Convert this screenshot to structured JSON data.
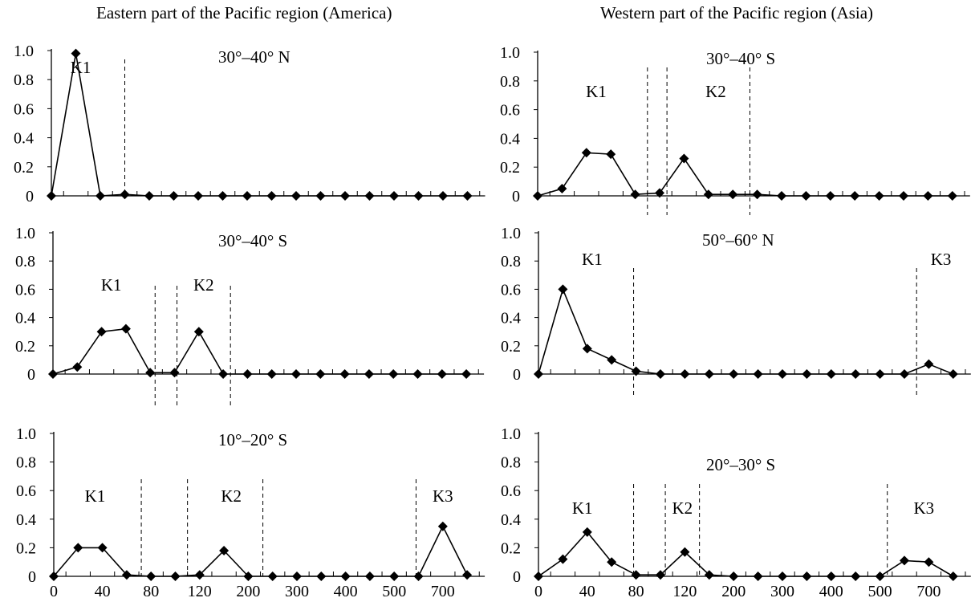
{
  "column_titles": {
    "left": "Eastern part of the Pacific region (America)",
    "right": "Western part of the Pacific region (Asia)"
  },
  "chart_data": [
    {
      "type": "line",
      "title": "30°–40° N",
      "ylim": [
        0,
        1.0
      ],
      "yticks": [
        "0",
        "0.2",
        "0.4",
        "0.6",
        "0.8",
        "1.0"
      ],
      "xtick_labels": [],
      "values": [
        0,
        0.98,
        0,
        0.01,
        0,
        0,
        0,
        0,
        0,
        0,
        0,
        0,
        0,
        0,
        0,
        0,
        0,
        0
      ],
      "clusters": [
        {
          "label": "K1",
          "index": 1.2
        }
      ],
      "dividers": [
        3.0
      ]
    },
    {
      "type": "line",
      "title": "30°–40° S",
      "ylim": [
        0,
        1.0
      ],
      "yticks": [
        "0",
        "0.2",
        "0.4",
        "0.6",
        "0.8",
        "1.0"
      ],
      "xtick_labels": [],
      "values": [
        0,
        0.05,
        0.3,
        0.32,
        0.01,
        0.01,
        0.3,
        0,
        0,
        0,
        0,
        0,
        0,
        0,
        0,
        0,
        0,
        0
      ],
      "clusters": [
        {
          "label": "K1",
          "index": 2.4
        },
        {
          "label": "K2",
          "index": 6.2
        }
      ],
      "dividers": [
        4.2,
        5.1,
        7.3
      ]
    },
    {
      "type": "line",
      "title": "10°–20° S",
      "ylim": [
        0,
        1.0
      ],
      "yticks": [
        "0",
        "0.2",
        "0.4",
        "0.6",
        "0.8",
        "1.0"
      ],
      "xtick_labels": [
        "0",
        "40",
        "80",
        "120",
        "200",
        "300",
        "400",
        "500",
        "700"
      ],
      "values": [
        0,
        0.2,
        0.2,
        0.01,
        0,
        0,
        0.01,
        0.18,
        0,
        0,
        0,
        0,
        0,
        0,
        0,
        0,
        0.35,
        0.01
      ],
      "clusters": [
        {
          "label": "K1",
          "index": 1.7
        },
        {
          "label": "K2",
          "index": 7.3
        },
        {
          "label": "K3",
          "index": 16.0
        }
      ],
      "dividers": [
        3.6,
        5.5,
        8.6,
        14.9
      ]
    },
    {
      "type": "line",
      "title": "30°–40° S",
      "ylim": [
        0,
        1.0
      ],
      "yticks": [
        "0",
        "0.2",
        "0.4",
        "0.6",
        "0.8",
        "1.0"
      ],
      "xtick_labels": [],
      "values": [
        0,
        0.05,
        0.3,
        0.29,
        0.01,
        0.02,
        0.26,
        0.01,
        0.01,
        0.01,
        0,
        0,
        0,
        0,
        0,
        0,
        0,
        0
      ],
      "clusters": [
        {
          "label": "K1",
          "index": 2.4
        },
        {
          "label": "K2",
          "index": 7.3
        }
      ],
      "dividers": [
        4.5,
        5.3,
        8.7
      ]
    },
    {
      "type": "line",
      "title": "50°–60° N",
      "ylim": [
        0,
        1.0
      ],
      "yticks": [
        "0",
        "0.2",
        "0.4",
        "0.6",
        "0.8",
        "1.0"
      ],
      "xtick_labels": [],
      "values": [
        0,
        0.6,
        0.18,
        0.1,
        0.02,
        0,
        0,
        0,
        0,
        0,
        0,
        0,
        0,
        0,
        0,
        0,
        0.07,
        0
      ],
      "clusters": [
        {
          "label": "K1",
          "index": 2.2
        },
        {
          "label": "K3",
          "index": 16.5
        }
      ],
      "dividers": [
        3.9,
        15.5
      ]
    },
    {
      "type": "line",
      "title": "20°–30° S",
      "ylim": [
        0,
        1.0
      ],
      "yticks": [
        "0",
        "0.2",
        "0.4",
        "0.6",
        "0.8",
        "1.0"
      ],
      "xtick_labels": [
        "0",
        "40",
        "80",
        "120",
        "200",
        "300",
        "400",
        "500",
        "700"
      ],
      "values": [
        0,
        0.12,
        0.31,
        0.1,
        0.01,
        0.01,
        0.17,
        0.01,
        0,
        0,
        0,
        0,
        0,
        0,
        0,
        0.11,
        0.1,
        0
      ],
      "clusters": [
        {
          "label": "K1",
          "index": 1.8
        },
        {
          "label": "K2",
          "index": 5.9
        },
        {
          "label": "K3",
          "index": 15.8
        }
      ],
      "dividers": [
        3.9,
        5.2,
        6.6,
        14.3
      ]
    }
  ]
}
